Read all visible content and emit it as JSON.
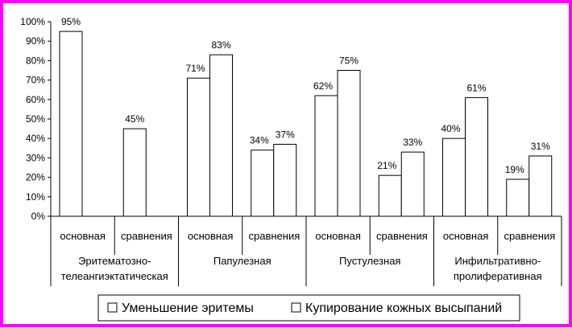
{
  "colors": {
    "frame": "#ff00ff",
    "bar_fill": "#ffffff",
    "bar_stroke": "#000000",
    "axis": "#000000"
  },
  "chart_data": {
    "type": "bar",
    "title": "",
    "xlabel": "",
    "ylabel": "",
    "ylim": [
      0,
      100
    ],
    "y_ticks": [
      "0%",
      "10%",
      "20%",
      "30%",
      "40%",
      "50%",
      "60%",
      "70%",
      "80%",
      "90%",
      "100%"
    ],
    "grid": false,
    "legend_position": "bottom",
    "groups": [
      {
        "label_lines": [
          "Эритематозно-",
          "телеангиэктатическая"
        ],
        "subcategories": [
          "основная",
          "сравнения"
        ]
      },
      {
        "label_lines": [
          "Папулезная"
        ],
        "subcategories": [
          "основная",
          "сравнения"
        ]
      },
      {
        "label_lines": [
          "Пустулезная"
        ],
        "subcategories": [
          "основная",
          "сравнения"
        ]
      },
      {
        "label_lines": [
          "Инфильтративно-",
          "пролиферативная"
        ],
        "subcategories": [
          "основная",
          "сравнения"
        ]
      }
    ],
    "categories": [
      "Эритематозно-телеангиэктатическая / основная",
      "Эритематозно-телеангиэктатическая / сравнения",
      "Папулезная / основная",
      "Папулезная / сравнения",
      "Пустулезная / основная",
      "Пустулезная / сравнения",
      "Инфильтративно-пролиферативная / основная",
      "Инфильтративно-пролиферативная / сравнения"
    ],
    "series": [
      {
        "name": "Уменьшение эритемы",
        "values": [
          95,
          45,
          71,
          34,
          62,
          21,
          40,
          19
        ]
      },
      {
        "name": "Купирование кожных высыпаний",
        "values": [
          null,
          null,
          83,
          37,
          75,
          33,
          61,
          31
        ]
      }
    ],
    "value_labels": [
      [
        "95%",
        "45%",
        "71%",
        "34%",
        "62%",
        "21%",
        "40%",
        "19%"
      ],
      [
        "",
        "",
        "83%",
        "37%",
        "75%",
        "33%",
        "61%",
        "31%"
      ]
    ]
  }
}
